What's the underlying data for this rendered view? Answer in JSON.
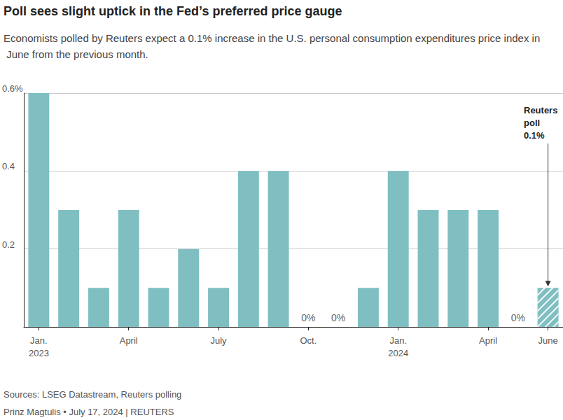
{
  "chart_data": {
    "type": "bar",
    "title": "Poll sees slight uptick in the Fed’s preferred price gauge",
    "subtitle": "Economists polled by Reuters expect a 0.1% increase in the U.S. personal consumption expenditures price index in June from the previous month.",
    "categories": [
      "Jan.\n2023",
      null,
      null,
      "April",
      null,
      null,
      "July",
      null,
      null,
      "Oct.",
      null,
      null,
      "Jan.\n2024",
      null,
      null,
      "April",
      null,
      "June"
    ],
    "values": [
      0.6,
      0.3,
      0.1,
      0.3,
      0.1,
      0.2,
      0.1,
      0.4,
      0.4,
      0,
      0,
      0.1,
      0.4,
      0.3,
      0.3,
      0.3,
      0,
      0.1
    ],
    "value_labels": [
      null,
      null,
      null,
      null,
      null,
      null,
      null,
      null,
      null,
      "0%",
      "0%",
      null,
      null,
      null,
      null,
      null,
      "0%",
      null
    ],
    "color": "#7fbfc2",
    "ylim": [
      0,
      0.6
    ],
    "yticks": [
      0.2,
      0.4,
      {
        "value": 0.6,
        "label": "0.6%"
      }
    ],
    "grid": true,
    "annotation": {
      "text": "Reuters\npoll\n0.1%",
      "category": "June",
      "value": 0.1
    },
    "source": "Sources: LSEG Datastream, Reuters polling",
    "credit": "Prinz Magtulis • July 17, 2024 | REUTERS"
  }
}
